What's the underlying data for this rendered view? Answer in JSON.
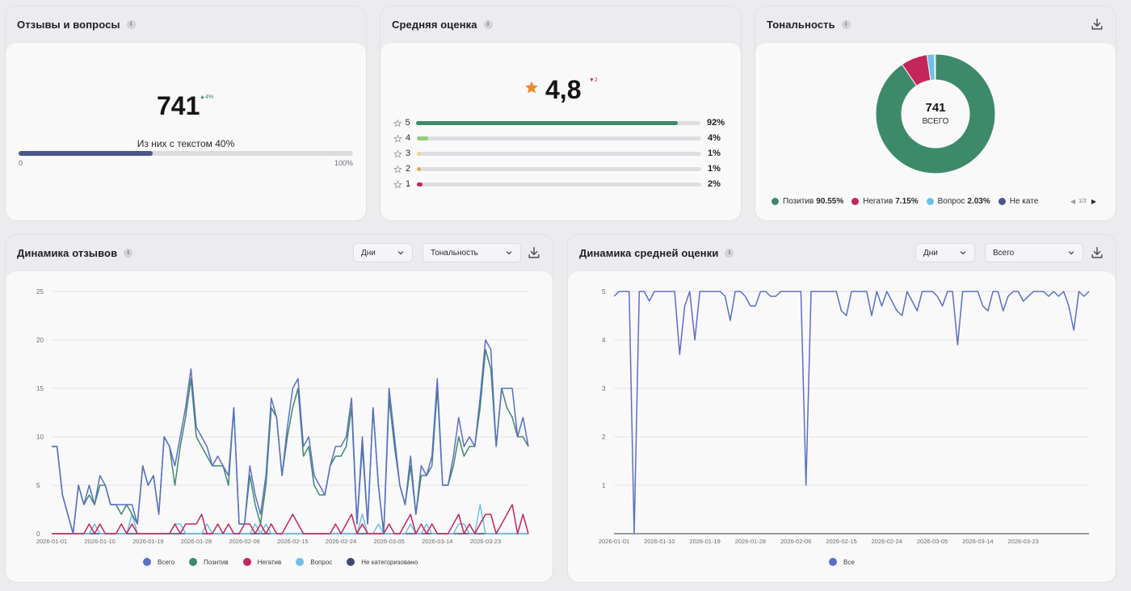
{
  "reviews_card": {
    "title": "Отзывы и вопросы",
    "info": "i",
    "total": "741",
    "delta": "▲4%",
    "text_share_label": "Из них с текстом 40%",
    "text_share": 0.4,
    "scale_min": "0",
    "scale_max": "100%"
  },
  "avg_card": {
    "title": "Средняя оценка",
    "info": "i",
    "value": "4,8",
    "delta": "▼2",
    "ratings": [
      {
        "stars": "5",
        "pct": "92%",
        "share": 0.92,
        "color": "#3d8a6b"
      },
      {
        "stars": "4",
        "pct": "4%",
        "share": 0.04,
        "color": "#8fcf74"
      },
      {
        "stars": "3",
        "pct": "1%",
        "share": 0.01,
        "color": "#f2d37a"
      },
      {
        "stars": "2",
        "pct": "1%",
        "share": 0.01,
        "color": "#f0a35a"
      },
      {
        "stars": "1",
        "pct": "2%",
        "share": 0.02,
        "color": "#c4255b"
      }
    ]
  },
  "tone_card": {
    "title": "Тональность",
    "info": "i",
    "center_value": "741",
    "center_label": "ВСЕГО",
    "pager": "1/2",
    "legend": [
      {
        "label": "Позитив",
        "value": "90.55%",
        "color": "#3d8a6b"
      },
      {
        "label": "Негатив",
        "value": "7.15%",
        "color": "#c4255b"
      },
      {
        "label": "Вопрос",
        "value": "2.03%",
        "color": "#6ec1e4"
      },
      {
        "label": "Не кате",
        "value": "",
        "color": "#4d5689"
      }
    ],
    "colors": {
      "positive": "#3d8a6b",
      "negative": "#c4255b",
      "question": "#6ec1e4",
      "uncategorized": "#4d5689"
    }
  },
  "dynamics_card": {
    "title": "Динамика отзывов",
    "info": "i",
    "period_select": "Дни",
    "type_select": "Тональность"
  },
  "avg_dynamics_card": {
    "title": "Динамика средней оценки",
    "info": "i",
    "period_select": "Дни",
    "type_select": "Всего"
  },
  "chart_data": [
    {
      "type": "pie",
      "title": "Тональность",
      "labels": [
        "Позитив",
        "Негатив",
        "Вопрос",
        "Не категоризовано"
      ],
      "values": [
        90.55,
        7.15,
        2.03,
        0.27
      ],
      "colors": [
        "#3d8a6b",
        "#c4255b",
        "#6ec1e4",
        "#4d5689"
      ]
    },
    {
      "type": "line",
      "title": "Динамика отзывов",
      "ylim": [
        0,
        25
      ],
      "yticks": [
        "0",
        "5",
        "10",
        "15",
        "20",
        "25"
      ],
      "xticks": [
        "2026-01-01",
        "2026-01-10",
        "2026-01-19",
        "2026-01-28",
        "2026-02-06",
        "2026-02-15",
        "2026-02-24",
        "2026-03-05",
        "2026-03-14",
        "2026-03-23"
      ],
      "series": [
        {
          "name": "Всего",
          "color": "#5b6fc4",
          "values": [
            9,
            9,
            4,
            2,
            0,
            5,
            3,
            5,
            3,
            6,
            5,
            3,
            3,
            3,
            3,
            3,
            1,
            7,
            5,
            6,
            2,
            10,
            9,
            7,
            10,
            13,
            17,
            11,
            10,
            9,
            7,
            8,
            7,
            6,
            13,
            1,
            1,
            7,
            4,
            2,
            6,
            14,
            12,
            6,
            11,
            15,
            16,
            9,
            10,
            6,
            5,
            4,
            7,
            9,
            9,
            10,
            14,
            1,
            10,
            1,
            13,
            5,
            0,
            15,
            10,
            5,
            3,
            8,
            2,
            7,
            6,
            8,
            16,
            5,
            5,
            8,
            12,
            9,
            10,
            9,
            14,
            20,
            19,
            9,
            15,
            15,
            15,
            10,
            12,
            9
          ]
        },
        {
          "name": "Позитив",
          "color": "#3d8a6b",
          "values": [
            9,
            9,
            4,
            2,
            0,
            5,
            3,
            4,
            3,
            5,
            5,
            3,
            3,
            2,
            3,
            2,
            1,
            7,
            5,
            6,
            2,
            10,
            9,
            5,
            9,
            12,
            16,
            10,
            9,
            8,
            7,
            7,
            7,
            5,
            13,
            1,
            1,
            6,
            3,
            1,
            5,
            13,
            12,
            6,
            10,
            13,
            15,
            8,
            9,
            5,
            4,
            4,
            7,
            8,
            8,
            9,
            13,
            1,
            9,
            1,
            13,
            5,
            0,
            14,
            9,
            5,
            3,
            7,
            2,
            6,
            6,
            7,
            15,
            5,
            5,
            7,
            10,
            8,
            9,
            9,
            13,
            19,
            17,
            9,
            15,
            13,
            12,
            10,
            10,
            9
          ]
        },
        {
          "name": "Негатив",
          "color": "#c4255b",
          "values": [
            0,
            0,
            0,
            0,
            0,
            0,
            0,
            1,
            0,
            1,
            0,
            0,
            0,
            1,
            0,
            1,
            0,
            0,
            0,
            0,
            0,
            0,
            0,
            1,
            0,
            1,
            1,
            1,
            2,
            0,
            0,
            1,
            0,
            1,
            0,
            0,
            1,
            1,
            0,
            1,
            0,
            1,
            0,
            0,
            1,
            2,
            1,
            0,
            0,
            0,
            0,
            0,
            0,
            1,
            0,
            1,
            2,
            0,
            1,
            0,
            0,
            0,
            0,
            1,
            0,
            0,
            1,
            2,
            0,
            1,
            0,
            1,
            0,
            0,
            0,
            1,
            2,
            0,
            1,
            0,
            1,
            2,
            2,
            0,
            1,
            2,
            3,
            0,
            2,
            0
          ]
        },
        {
          "name": "Вопрос",
          "color": "#6ec1e4",
          "values": [
            0,
            0,
            0,
            0,
            0,
            0,
            0,
            0,
            1,
            0,
            0,
            0,
            0,
            0,
            0,
            2,
            0,
            0,
            0,
            0,
            0,
            0,
            0,
            1,
            1,
            0,
            0,
            0,
            0,
            1,
            0,
            0,
            0,
            0,
            0,
            0,
            0,
            0,
            1,
            0,
            1,
            0,
            0,
            0,
            0,
            0,
            0,
            0,
            0,
            0,
            0,
            0,
            0,
            0,
            0,
            0,
            0,
            0,
            2,
            0,
            0,
            1,
            0,
            0,
            0,
            0,
            0,
            1,
            0,
            0,
            1,
            0,
            0,
            0,
            0,
            0,
            1,
            1,
            0,
            0,
            3,
            0,
            0,
            0,
            0,
            0,
            0,
            0,
            0,
            0
          ]
        },
        {
          "name": "Не категоризовано",
          "color": "#3f4870",
          "values": [
            0,
            0,
            0,
            0,
            0,
            0,
            0,
            0,
            0,
            0,
            0,
            0,
            0,
            0,
            0,
            0,
            0,
            0,
            0,
            0,
            0,
            0,
            0,
            0,
            0,
            0,
            0,
            0,
            0,
            0,
            0,
            0,
            0,
            0,
            0,
            0,
            0,
            0,
            0,
            0,
            0,
            0,
            0,
            0,
            0,
            0,
            0,
            0,
            0,
            0,
            0,
            0,
            0,
            0,
            0,
            0,
            0,
            0,
            0,
            0,
            0,
            0,
            0,
            0,
            0,
            0,
            0,
            0,
            0,
            0,
            0,
            0,
            0,
            0,
            0,
            0,
            0,
            0,
            0,
            0,
            0,
            0,
            0,
            0,
            0,
            0,
            0,
            0,
            0,
            0
          ]
        }
      ]
    },
    {
      "type": "line",
      "title": "Динамика средней оценки",
      "ylim": [
        0,
        5
      ],
      "yticks": [
        "1",
        "2",
        "3",
        "4",
        "5"
      ],
      "xticks": [
        "2026-01-01",
        "2026-01-10",
        "2026-01-19",
        "2026-01-28",
        "2026-02-06",
        "2026-02-15",
        "2026-02-24",
        "2026-03-05",
        "2026-03-14",
        "2026-03-23"
      ],
      "series": [
        {
          "name": "Все",
          "color": "#5b6fc4",
          "values": [
            4.9,
            5,
            5,
            5,
            0,
            5,
            5,
            4.8,
            5,
            5,
            5,
            5,
            5,
            3.7,
            4.7,
            5,
            4,
            5,
            5,
            5,
            5,
            5,
            4.9,
            4.4,
            5,
            5,
            4.9,
            4.7,
            4.7,
            5,
            5,
            4.9,
            4.9,
            5,
            5,
            5,
            5,
            5,
            1,
            5,
            5,
            5,
            5,
            5,
            5,
            4.6,
            4.5,
            5,
            5,
            5,
            5,
            4.5,
            5,
            4.7,
            5,
            4.8,
            4.6,
            4.5,
            5,
            4.8,
            4.6,
            5,
            5,
            5,
            4.9,
            4.7,
            5,
            5,
            3.9,
            5,
            5,
            5,
            5,
            4.7,
            4.6,
            5,
            5,
            4.6,
            4.9,
            5,
            5,
            4.8,
            4.9,
            5,
            5,
            5,
            4.9,
            5,
            4.9,
            5,
            4.7,
            4.2,
            5,
            4.9,
            5
          ]
        }
      ]
    }
  ]
}
